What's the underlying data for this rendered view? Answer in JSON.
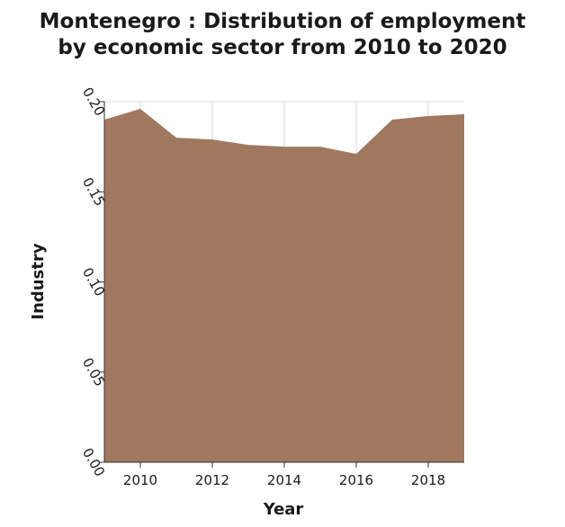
{
  "chart_data": {
    "type": "area",
    "title": "Montenegro : Distribution of employment by economic sector from 2010 to 2020",
    "title_lines": [
      "Montenegro : Distribution of employment",
      "by economic sector from 2010 to 2020"
    ],
    "xlabel": "Year",
    "ylabel": "Industry",
    "xlim": [
      2009,
      2019
    ],
    "ylim": [
      0,
      0.2
    ],
    "x_ticks": [
      2010,
      2012,
      2014,
      2016,
      2018
    ],
    "x_tick_labels": [
      "2010",
      "2012",
      "2014",
      "2016",
      "2018"
    ],
    "y_ticks": [
      0,
      0.05,
      0.1,
      0.15,
      0.2
    ],
    "y_tick_labels": [
      "0.00",
      "0.05",
      "0.10",
      "0.15",
      "0.20"
    ],
    "grid": true,
    "legend": false,
    "fill_color": "#a0785f",
    "series": [
      {
        "x": [
          2009,
          2010,
          2011,
          2012,
          2013,
          2014,
          2015,
          2016,
          2017,
          2018,
          2019
        ],
        "values": [
          0.19,
          0.196,
          0.18,
          0.179,
          0.176,
          0.175,
          0.175,
          0.171,
          0.19,
          0.192,
          0.193
        ]
      }
    ]
  }
}
